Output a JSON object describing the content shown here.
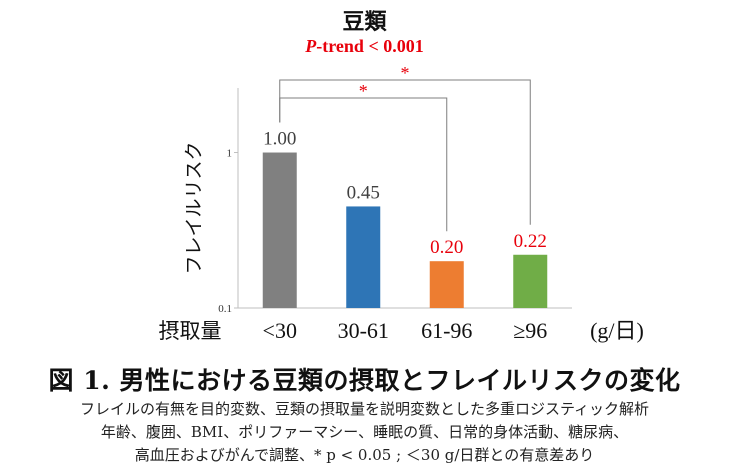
{
  "chart_data": {
    "type": "bar",
    "title": "豆類",
    "subtitle_italic": "P",
    "subtitle_rest": "-trend < 0.001",
    "ylabel": "フレイルリスク",
    "xlabel_left": "摂取量",
    "x_unit": "(g/日)",
    "y_scale": "log",
    "ylim": [
      0.1,
      2.6
    ],
    "y_ticks": [
      {
        "value": 0.1,
        "label": "0.1"
      },
      {
        "value": 1,
        "label": "1"
      }
    ],
    "categories": [
      "<30",
      "30-61",
      "61-96",
      "≥96"
    ],
    "values": [
      1.0,
      0.45,
      0.2,
      0.22
    ],
    "value_labels": [
      "1.00",
      "0.45",
      "0.20",
      "0.22"
    ],
    "bar_colors": [
      "#808080",
      "#2e75b6",
      "#ed7d31",
      "#70ad47"
    ],
    "label_colors": [
      "#404040",
      "#404040",
      "#e8000b",
      "#e8000b"
    ],
    "significance": [
      {
        "from": 0,
        "to": 2,
        "label": "*"
      },
      {
        "from": 0,
        "to": 3,
        "label": "*"
      }
    ],
    "grid": false,
    "legend": "none"
  },
  "figure_title": "図 1. 男性における豆類の摂取とフレイルリスクの変化",
  "notes": [
    "フレイルの有無を目的変数、豆類の摂取量を説明変数とした多重ロジスティック解析",
    "年齢、腹囲、BMI、ポリファーマシー、睡眠の質、日常的身体活動、糖尿病、",
    "高血圧およびがんで調整、* p < 0.05 ; ＜30 g/日群との有意差あり"
  ],
  "colors": {
    "significance": "#e8000b",
    "axis": "#bfbfbf"
  }
}
